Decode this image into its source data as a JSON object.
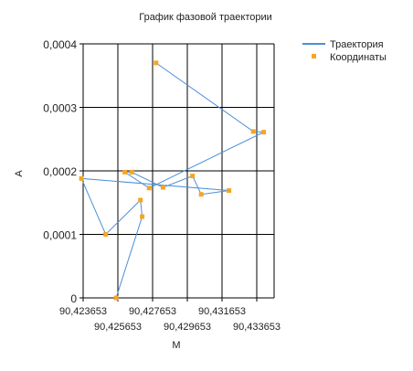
{
  "chart_data": {
    "type": "line",
    "title": "График фазовой траектории",
    "xlabel": "M",
    "ylabel": "A",
    "xlim": [
      90.423653,
      90.434653
    ],
    "ylim": [
      0,
      0.0004
    ],
    "x_ticks": [
      90.423653,
      90.425653,
      90.427653,
      90.429653,
      90.431653,
      90.433653
    ],
    "x_tick_labels": [
      "90,423653",
      "90,425653",
      "90,427653",
      "90,429653",
      "90,431653",
      "90,433653"
    ],
    "y_ticks": [
      0,
      0.0001,
      0.0002,
      0.0003,
      0.0004
    ],
    "y_tick_labels": [
      "0",
      "0,0001",
      "0,0002",
      "0,0003",
      "0,0004"
    ],
    "grid": true,
    "legend_position": "top-right",
    "series": [
      {
        "name": "Траектория",
        "kind": "line",
        "color": "#4a8fd8",
        "x": [
          90.425553,
          90.427053,
          90.426953,
          90.424953,
          90.423553,
          90.432053,
          90.430453,
          90.429953,
          90.428253,
          90.426453,
          90.426053,
          90.427453,
          90.434053,
          90.433453,
          90.427853
        ],
        "y": [
          0.0,
          0.000128,
          0.000154,
          0.0001,
          0.000188,
          0.000169,
          0.000163,
          0.000192,
          0.000174,
          0.000198,
          0.000198,
          0.000173,
          0.000261,
          0.000262,
          0.00037
        ]
      },
      {
        "name": "Координаты",
        "kind": "scatter",
        "color": "#f5a623",
        "x": [
          90.425553,
          90.427053,
          90.426953,
          90.424953,
          90.423553,
          90.432053,
          90.430453,
          90.429953,
          90.428253,
          90.426453,
          90.426053,
          90.427453,
          90.434053,
          90.433453,
          90.427853
        ],
        "y": [
          0.0,
          0.000128,
          0.000154,
          0.0001,
          0.000188,
          0.000169,
          0.000163,
          0.000192,
          0.000174,
          0.000198,
          0.000198,
          0.000173,
          0.000261,
          0.000262,
          0.00037
        ]
      }
    ]
  }
}
